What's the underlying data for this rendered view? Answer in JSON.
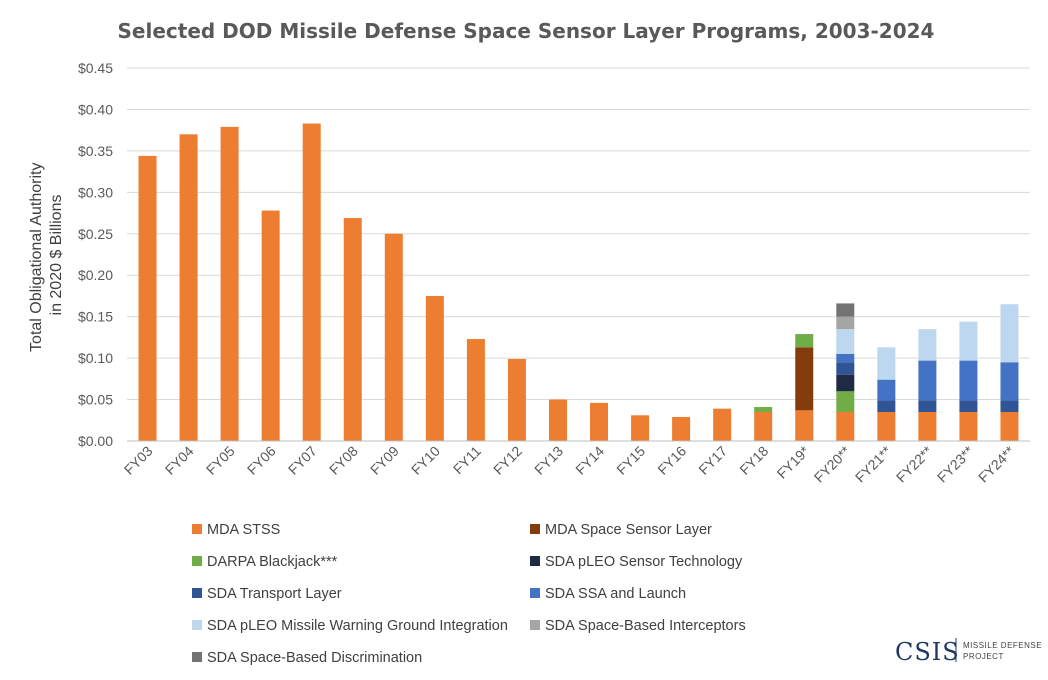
{
  "chart_data": {
    "type": "bar",
    "stacked": true,
    "title": "Selected DOD Missile Defense Space Sensor Layer Programs, 2003-2024",
    "ylabel_line1": "Total Obligational Authority",
    "ylabel_line2": "in 2020 $ Billions",
    "xlabel": "",
    "ylim": [
      0,
      0.45
    ],
    "yticks": [
      "$0.00",
      "$0.05",
      "$0.10",
      "$0.15",
      "$0.20",
      "$0.25",
      "$0.30",
      "$0.35",
      "$0.40",
      "$0.45"
    ],
    "grid": true,
    "legend_position": "bottom",
    "categories": [
      "FY03",
      "FY04",
      "FY05",
      "FY06",
      "FY07",
      "FY08",
      "FY09",
      "FY10",
      "FY11",
      "FY12",
      "FY13",
      "FY14",
      "FY15",
      "FY16",
      "FY17",
      "FY18",
      "FY19*",
      "FY20**",
      "FY21**",
      "FY22**",
      "FY23**",
      "FY24**"
    ],
    "series": [
      {
        "name": "MDA STSS",
        "color": "#ed7d31",
        "values": [
          0.344,
          0.37,
          0.379,
          0.278,
          0.383,
          0.269,
          0.25,
          0.175,
          0.123,
          0.099,
          0.05,
          0.046,
          0.031,
          0.029,
          0.039,
          0.035,
          0.037,
          0.035,
          0.035,
          0.035,
          0.035,
          0.035
        ]
      },
      {
        "name": "MDA Space Sensor Layer",
        "color": "#843c0c",
        "values": [
          0,
          0,
          0,
          0,
          0,
          0,
          0,
          0,
          0,
          0,
          0,
          0,
          0,
          0,
          0,
          0,
          0.076,
          0,
          0,
          0,
          0,
          0
        ]
      },
      {
        "name": "DARPA Blackjack***",
        "color": "#70ad47",
        "values": [
          0,
          0,
          0,
          0,
          0,
          0,
          0,
          0,
          0,
          0,
          0,
          0,
          0,
          0,
          0,
          0.006,
          0.016,
          0.025,
          0,
          0,
          0,
          0
        ]
      },
      {
        "name": "SDA pLEO Sensor Technology",
        "color": "#1f2a44",
        "values": [
          0,
          0,
          0,
          0,
          0,
          0,
          0,
          0,
          0,
          0,
          0,
          0,
          0,
          0,
          0,
          0,
          0,
          0.02,
          0,
          0,
          0,
          0
        ]
      },
      {
        "name": "SDA Transport Layer",
        "color": "#2f5597",
        "values": [
          0,
          0,
          0,
          0,
          0,
          0,
          0,
          0,
          0,
          0,
          0,
          0,
          0,
          0,
          0,
          0,
          0,
          0.015,
          0.014,
          0.014,
          0.014,
          0.014
        ]
      },
      {
        "name": "SDA SSA and Launch",
        "color": "#4472c4",
        "values": [
          0,
          0,
          0,
          0,
          0,
          0,
          0,
          0,
          0,
          0,
          0,
          0,
          0,
          0,
          0,
          0,
          0,
          0.01,
          0.025,
          0.048,
          0.048,
          0.046
        ]
      },
      {
        "name": "SDA pLEO Missile Warning Ground Integration",
        "color": "#bdd7ee",
        "values": [
          0,
          0,
          0,
          0,
          0,
          0,
          0,
          0,
          0,
          0,
          0,
          0,
          0,
          0,
          0,
          0,
          0,
          0.03,
          0.039,
          0.038,
          0.047,
          0.07
        ]
      },
      {
        "name": "SDA Space-Based Interceptors",
        "color": "#a5a5a5",
        "values": [
          0,
          0,
          0,
          0,
          0,
          0,
          0,
          0,
          0,
          0,
          0,
          0,
          0,
          0,
          0,
          0,
          0,
          0.015,
          0,
          0,
          0,
          0
        ]
      },
      {
        "name": "SDA Space-Based Discrimination",
        "color": "#737373",
        "values": [
          0,
          0,
          0,
          0,
          0,
          0,
          0,
          0,
          0,
          0,
          0,
          0,
          0,
          0,
          0,
          0,
          0,
          0.016,
          0,
          0,
          0,
          0
        ]
      }
    ]
  },
  "logo": {
    "main": "CSIS",
    "sub_line1": "MISSILE DEFENSE",
    "sub_line2": "PROJECT"
  }
}
